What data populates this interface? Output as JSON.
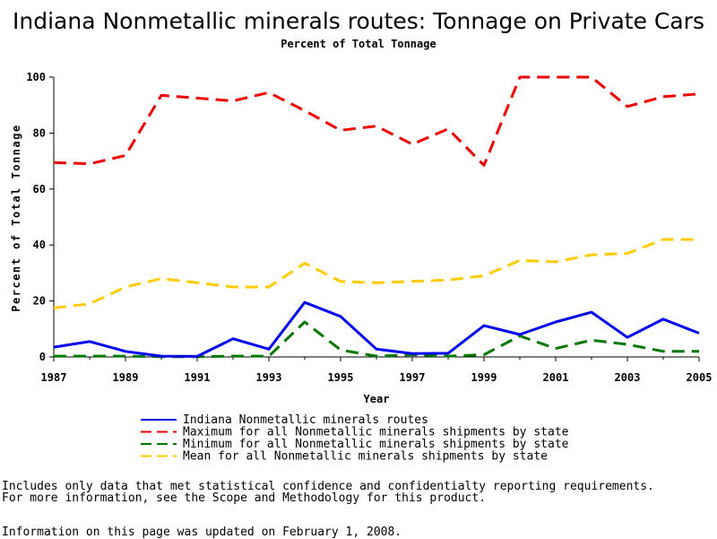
{
  "chart_data": {
    "type": "line",
    "title": "Indiana Nonmetallic minerals routes: Tonnage on Private Cars",
    "subtitle": "Percent of Total Tonnage",
    "xlabel": "Year",
    "ylabel": "Percent of Total Tonnage",
    "xlim": [
      1987,
      2005
    ],
    "ylim": [
      0,
      100
    ],
    "x_ticks": [
      "1987",
      "1989",
      "1991",
      "1993",
      "1995",
      "1997",
      "1999",
      "2001",
      "2003",
      "2005"
    ],
    "y_ticks": [
      "0",
      "20",
      "40",
      "60",
      "80",
      "100"
    ],
    "x": [
      1987,
      1988,
      1989,
      1990,
      1991,
      1992,
      1993,
      1994,
      1995,
      1996,
      1997,
      1998,
      1999,
      2000,
      2001,
      2002,
      2003,
      2004,
      2005
    ],
    "legend_position": "bottom",
    "series": [
      {
        "name": "Indiana Nonmetallic minerals routes",
        "color": "#0000ee",
        "style": "solid",
        "values": [
          3.5,
          5.5,
          2.0,
          0.3,
          0.2,
          6.5,
          2.8,
          19.5,
          14.5,
          2.8,
          1.2,
          1.3,
          11.2,
          8.0,
          12.5,
          16.0,
          7.0,
          13.5,
          8.5
        ]
      },
      {
        "name": "Maximum for all Nonmetallic minerals shipments by state",
        "color": "#ee0000",
        "style": "dashed",
        "values": [
          69.5,
          69.0,
          72.0,
          93.5,
          92.5,
          91.5,
          94.5,
          88.0,
          81.0,
          82.5,
          76.0,
          81.5,
          68.5,
          100,
          100,
          100,
          89.5,
          93.0,
          94.0
        ]
      },
      {
        "name": "Minimum for all Nonmetallic minerals shipments by state",
        "color": "#007700",
        "style": "dashed",
        "values": [
          0.3,
          0.3,
          0.3,
          0.1,
          0.1,
          0.3,
          0.3,
          12.5,
          2.5,
          0.3,
          0.8,
          0.3,
          0.8,
          7.5,
          3.0,
          6.0,
          4.5,
          2.0,
          2.0
        ]
      },
      {
        "name": "Mean for all Nonmetallic minerals shipments by state",
        "color": "#ffcc00",
        "style": "dashed",
        "values": [
          17.5,
          19.0,
          25.0,
          28.0,
          26.5,
          25.0,
          25.0,
          33.5,
          27.0,
          26.5,
          27.0,
          27.5,
          29.0,
          34.5,
          34.0,
          36.5,
          37.0,
          42.0,
          42.0
        ]
      }
    ]
  },
  "notes": {
    "line1": "Includes only data that met statistical confidence and confidentialty reporting requirements.",
    "line2": "For more information, see the Scope and Methodology for this product.",
    "updated": "Information on this page was updated on February 1, 2008."
  }
}
